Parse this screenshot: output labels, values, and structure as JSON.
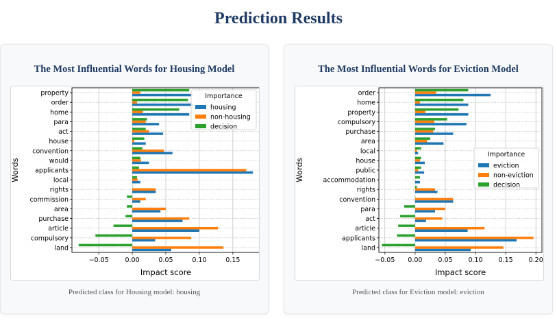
{
  "page": {
    "title": "Prediction Results"
  },
  "colors": {
    "series": [
      "#1f77b4",
      "#ff7f0e",
      "#2ca02c"
    ],
    "title": "#1f3a63"
  },
  "chart_data": [
    {
      "type": "bar",
      "orientation": "horizontal",
      "title": "The Most Influential Words for Housing Model",
      "xlabel": "Impact score",
      "ylabel": "Words",
      "xlim": [
        -0.09,
        0.19
      ],
      "xticks": [
        -0.05,
        0.0,
        0.05,
        0.1,
        0.15
      ],
      "xtick_labels": [
        "−0.05",
        "0.00",
        "0.05",
        "0.10",
        "0.15"
      ],
      "legend": {
        "title": "Importance",
        "placement": "top-right"
      },
      "categories": [
        "property",
        "order",
        "home",
        "para",
        "act",
        "house",
        "convention",
        "would",
        "applicants",
        "local",
        "rights",
        "commission",
        "area",
        "purchase",
        "article",
        "compulsory",
        "land"
      ],
      "series": [
        {
          "name": "housing",
          "values": [
            0.09,
            0.09,
            0.085,
            0.04,
            0.046,
            0.02,
            0.06,
            0.025,
            0.18,
            0.012,
            0.035,
            0.012,
            0.042,
            0.075,
            0.1,
            0.034,
            0.058
          ]
        },
        {
          "name": "non-housing",
          "values": [
            0.012,
            0.007,
            0.016,
            0.02,
            0.025,
            0.003,
            0.047,
            0.013,
            0.17,
            0.008,
            0.035,
            0.02,
            0.05,
            0.085,
            0.128,
            0.088,
            0.136
          ]
        },
        {
          "name": "decision",
          "values": [
            0.085,
            0.083,
            0.07,
            0.022,
            0.02,
            0.018,
            0.015,
            0.012,
            0.01,
            0.007,
            0.0,
            -0.008,
            -0.008,
            -0.01,
            -0.028,
            -0.055,
            -0.08
          ]
        }
      ],
      "caption": "Predicted class for Housing model: housing"
    },
    {
      "type": "bar",
      "orientation": "horizontal",
      "title": "The Most Influential Words for Eviction Model",
      "xlabel": "Impact score",
      "ylabel": "Words",
      "xlim": [
        -0.06,
        0.21
      ],
      "xticks": [
        -0.05,
        0.0,
        0.05,
        0.1,
        0.15,
        0.2
      ],
      "xtick_labels": [
        "−0.05",
        "0.00",
        "0.05",
        "0.10",
        "0.15",
        "0.20"
      ],
      "legend": {
        "title": "Importance",
        "placement": "center-right"
      },
      "categories": [
        "order",
        "home",
        "property",
        "compulsory",
        "purchase",
        "area",
        "local",
        "house",
        "public",
        "accommodation",
        "rights",
        "convention",
        "para",
        "act",
        "article",
        "applicants",
        "land"
      ],
      "series": [
        {
          "name": "eviction",
          "values": [
            0.125,
            0.088,
            0.088,
            0.085,
            0.063,
            0.047,
            0.005,
            0.016,
            0.015,
            0.008,
            0.037,
            0.063,
            0.033,
            0.018,
            0.087,
            0.168,
            0.092
          ]
        },
        {
          "name": "non-eviction",
          "values": [
            0.035,
            0.008,
            0.017,
            0.032,
            0.03,
            0.02,
            0.003,
            0.008,
            0.005,
            0.0,
            0.033,
            0.063,
            0.05,
            0.045,
            0.115,
            0.196,
            0.146
          ]
        },
        {
          "name": "decision",
          "values": [
            0.088,
            0.08,
            0.072,
            0.053,
            0.033,
            0.025,
            0.01,
            0.01,
            0.01,
            0.008,
            0.003,
            0.0,
            -0.018,
            -0.025,
            -0.028,
            -0.03,
            -0.055
          ]
        }
      ],
      "caption": "Predicted class for Eviction model: eviction"
    }
  ]
}
